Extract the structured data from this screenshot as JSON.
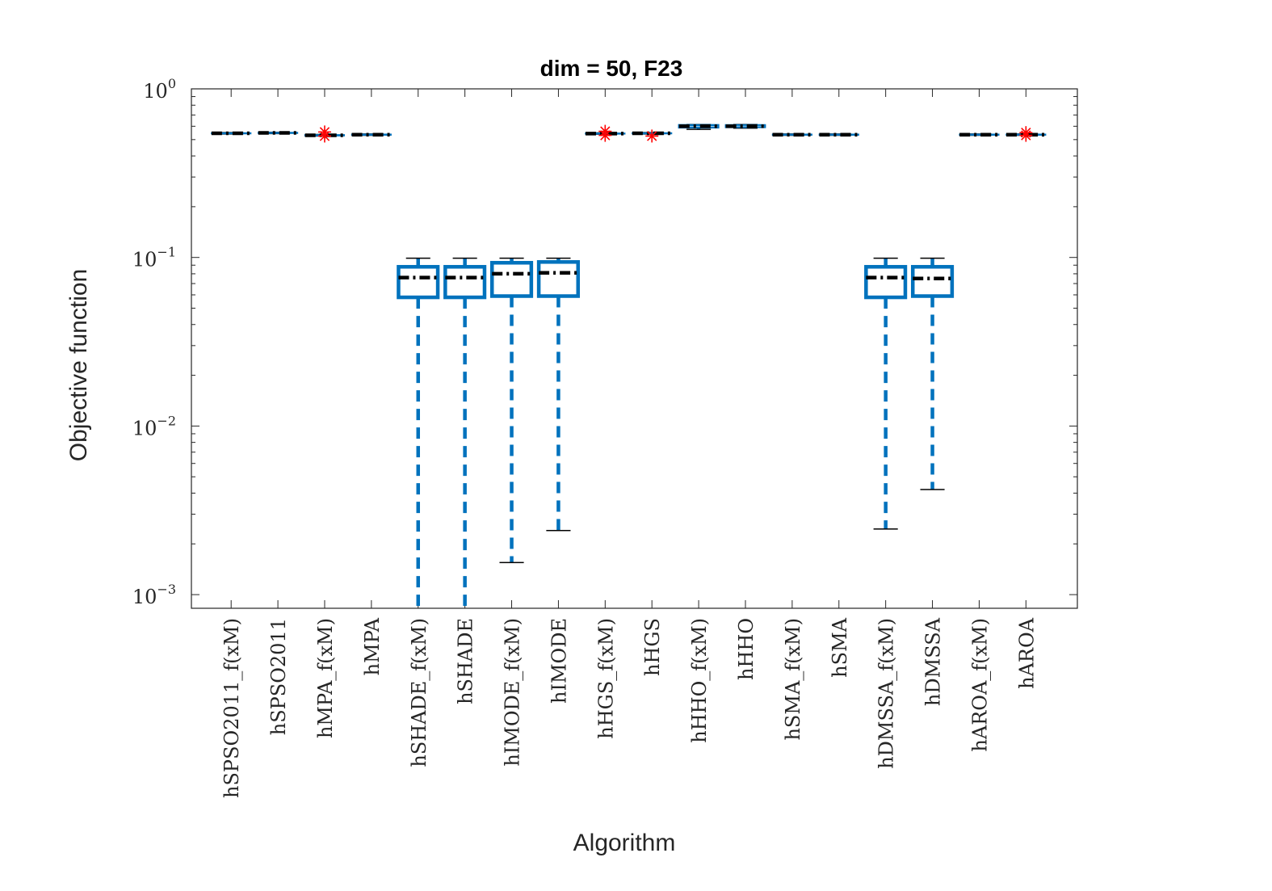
{
  "chart_data": {
    "type": "box",
    "title": "dim = 50,  F23",
    "xlabel": "Algorithm",
    "ylabel": "Objective function",
    "yscale": "log",
    "ylim": [
      0.00083,
      1.0
    ],
    "y_ticks": [
      {
        "base": "10",
        "exp": "0",
        "value": 1.0
      },
      {
        "base": "10",
        "exp": "−1",
        "value": 0.1
      },
      {
        "base": "10",
        "exp": "−2",
        "value": 0.01
      },
      {
        "base": "10",
        "exp": "−3",
        "value": 0.001
      }
    ],
    "categories": [
      "hSPSO2011_f(xM)",
      "hSPSO2011",
      "hMPA_f(xM)",
      "hMPA",
      "hSHADE_f(xM)",
      "hSHADE",
      "hIMODE_f(xM)",
      "hIMODE",
      "hHGS_f(xM)",
      "hHGS",
      "hHHO_f(xM)",
      "hHHO",
      "hSMA_f(xM)",
      "hSMA",
      "hDMSSA_f(xM)",
      "hDMSSA",
      "hAROA_f(xM)",
      "hAROA"
    ],
    "boxes": [
      {
        "whisker_low": 0.54,
        "q1": 0.542,
        "median": 0.545,
        "q3": 0.548,
        "whisker_high": 0.55,
        "outliers": []
      },
      {
        "whisker_low": 0.543,
        "q1": 0.545,
        "median": 0.548,
        "q3": 0.551,
        "whisker_high": 0.553,
        "outliers": []
      },
      {
        "whisker_low": 0.525,
        "q1": 0.527,
        "median": 0.53,
        "q3": 0.534,
        "whisker_high": 0.536,
        "outliers": [
          0.555,
          0.525
        ]
      },
      {
        "whisker_low": 0.53,
        "q1": 0.532,
        "median": 0.535,
        "q3": 0.538,
        "whisker_high": 0.54,
        "outliers": []
      },
      {
        "whisker_low": 0.0008,
        "q1": 0.058,
        "median": 0.076,
        "q3": 0.088,
        "whisker_high": 0.099,
        "outliers": []
      },
      {
        "whisker_low": 0.0008,
        "q1": 0.058,
        "median": 0.076,
        "q3": 0.088,
        "whisker_high": 0.099,
        "outliers": []
      },
      {
        "whisker_low": 0.00155,
        "q1": 0.059,
        "median": 0.08,
        "q3": 0.093,
        "whisker_high": 0.099,
        "outliers": []
      },
      {
        "whisker_low": 0.0024,
        "q1": 0.059,
        "median": 0.081,
        "q3": 0.094,
        "whisker_high": 0.099,
        "outliers": []
      },
      {
        "whisker_low": 0.538,
        "q1": 0.54,
        "median": 0.543,
        "q3": 0.546,
        "whisker_high": 0.548,
        "outliers": [
          0.56,
          0.53
        ]
      },
      {
        "whisker_low": 0.54,
        "q1": 0.542,
        "median": 0.545,
        "q3": 0.548,
        "whisker_high": 0.55,
        "outliers": [
          0.525
        ]
      },
      {
        "whisker_low": 0.575,
        "q1": 0.59,
        "median": 0.6,
        "q3": 0.61,
        "whisker_high": 0.615,
        "outliers": []
      },
      {
        "whisker_low": 0.585,
        "q1": 0.592,
        "median": 0.6,
        "q3": 0.61,
        "whisker_high": 0.615,
        "outliers": []
      },
      {
        "whisker_low": 0.53,
        "q1": 0.532,
        "median": 0.535,
        "q3": 0.538,
        "whisker_high": 0.54,
        "outliers": []
      },
      {
        "whisker_low": 0.53,
        "q1": 0.532,
        "median": 0.535,
        "q3": 0.538,
        "whisker_high": 0.54,
        "outliers": []
      },
      {
        "whisker_low": 0.00245,
        "q1": 0.058,
        "median": 0.076,
        "q3": 0.088,
        "whisker_high": 0.099,
        "outliers": []
      },
      {
        "whisker_low": 0.0042,
        "q1": 0.059,
        "median": 0.075,
        "q3": 0.088,
        "whisker_high": 0.099,
        "outliers": []
      },
      {
        "whisker_low": 0.53,
        "q1": 0.532,
        "median": 0.535,
        "q3": 0.538,
        "whisker_high": 0.54,
        "outliers": []
      },
      {
        "whisker_low": 0.53,
        "q1": 0.532,
        "median": 0.535,
        "q3": 0.538,
        "whisker_high": 0.54,
        "outliers": [
          0.55,
          0.53
        ]
      }
    ],
    "colors": {
      "box": "#0072BD",
      "median": "#000000",
      "outlier": "#FF0000",
      "axis": "#262626"
    },
    "grid": false,
    "legend": "none"
  }
}
